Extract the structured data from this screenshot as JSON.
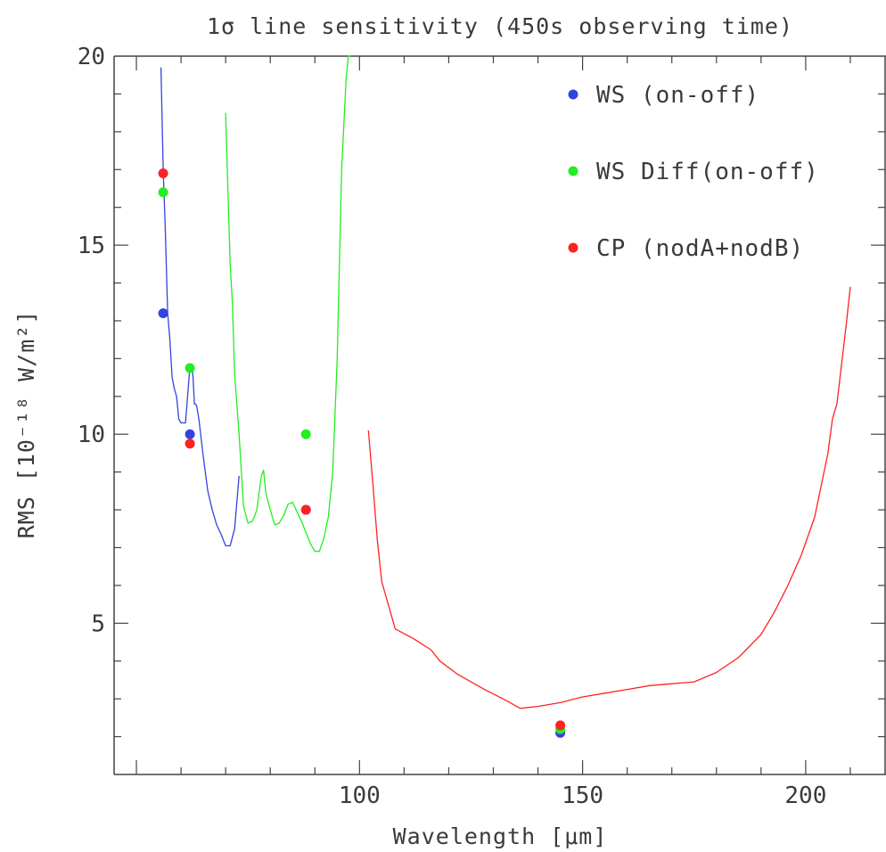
{
  "chart_data": {
    "type": "line",
    "title": "1σ line sensitivity (450s observing time)",
    "xlabel": "Wavelength [μm]",
    "ylabel": "RMS [10⁻¹⁸ W/m²]",
    "xlim": [
      45,
      218
    ],
    "ylim": [
      1,
      20
    ],
    "xticks": [
      100,
      150,
      200
    ],
    "yticks": [
      5,
      10,
      15,
      20
    ],
    "grid": false,
    "legend_position": "top-right",
    "colors": {
      "blue": "#3344dd",
      "green": "#22ee22",
      "red": "#ff2222"
    },
    "curves": [
      {
        "color": "blue",
        "x": [
          55.5,
          56.0,
          56.5,
          57.0,
          57.5,
          58.0,
          58.5,
          59.0,
          59.5,
          60.0,
          61.0,
          62.0,
          62.5,
          62.7,
          63.0,
          63.2,
          63.5,
          64.0,
          65.0,
          66.0,
          67.0,
          68.0,
          69.0,
          70.0,
          71.0,
          72.0,
          73.0
        ],
        "y": [
          19.7,
          17.0,
          15.3,
          13.2,
          12.5,
          11.5,
          11.2,
          11.0,
          10.4,
          10.3,
          10.3,
          11.8,
          11.8,
          11.5,
          10.8,
          10.8,
          10.75,
          10.4,
          9.4,
          8.5,
          8.0,
          7.6,
          7.35,
          7.05,
          7.05,
          7.5,
          8.9
        ]
      },
      {
        "color": "green",
        "x": [
          70.0,
          71.0,
          71.5,
          72.0,
          73.0,
          74.0,
          75.0,
          76.0,
          77.0,
          78.0,
          78.5,
          79.0,
          80.0,
          81.0,
          82.0,
          83.0,
          84.0,
          85.0,
          86.0,
          87.0,
          88.0,
          89.0,
          90.0,
          91.0,
          92.0,
          93.0,
          94.0,
          95.0,
          96.0,
          97.0,
          97.5,
          98.0
        ],
        "y": [
          18.5,
          14.5,
          13.5,
          11.6,
          10.0,
          8.1,
          7.65,
          7.7,
          8.0,
          8.9,
          9.05,
          8.45,
          8.0,
          7.6,
          7.65,
          7.85,
          8.15,
          8.2,
          7.95,
          7.7,
          7.4,
          7.1,
          6.9,
          6.9,
          7.25,
          7.8,
          9.0,
          12.0,
          17.0,
          19.4,
          20.0,
          20.0
        ]
      },
      {
        "color": "red",
        "x": [
          102.0,
          103.0,
          104.0,
          105.0,
          108.0,
          112.0,
          116.0,
          118.0,
          122.0,
          128.0,
          133.0,
          136.0,
          140.0,
          145.0,
          150.0,
          155.0,
          160.0,
          165.0,
          170.0,
          175.0,
          180.0,
          185.0,
          190.0,
          193.0,
          196.0,
          199.0,
          202.0,
          205.0,
          206.0,
          207.0,
          208.0,
          209.0,
          210.0
        ],
        "y": [
          10.1,
          8.7,
          7.2,
          6.1,
          4.85,
          4.6,
          4.3,
          4.0,
          3.65,
          3.25,
          2.95,
          2.75,
          2.8,
          2.9,
          3.05,
          3.15,
          3.25,
          3.35,
          3.4,
          3.45,
          3.7,
          4.1,
          4.7,
          5.3,
          6.0,
          6.8,
          7.8,
          9.5,
          10.4,
          10.8,
          11.8,
          12.8,
          13.9
        ]
      }
    ],
    "points": [
      {
        "series": "WS (on-off)",
        "color": "blue",
        "x": [
          56,
          62,
          88,
          145
        ],
        "y": [
          13.2,
          10.0,
          8.0,
          2.1
        ]
      },
      {
        "series": "WS Diff(on-off)",
        "color": "green",
        "x": [
          56,
          62,
          88,
          145
        ],
        "y": [
          16.4,
          11.75,
          10.0,
          2.2
        ]
      },
      {
        "series": "CP (nodA+nodB)",
        "color": "red",
        "x": [
          56,
          62,
          88,
          145
        ],
        "y": [
          16.9,
          9.75,
          8.0,
          2.3
        ]
      }
    ],
    "legend": [
      {
        "label": "WS (on-off)",
        "color": "blue"
      },
      {
        "label": "WS Diff(on-off)",
        "color": "green"
      },
      {
        "label": "CP (nodA+nodB)",
        "color": "red"
      }
    ]
  }
}
